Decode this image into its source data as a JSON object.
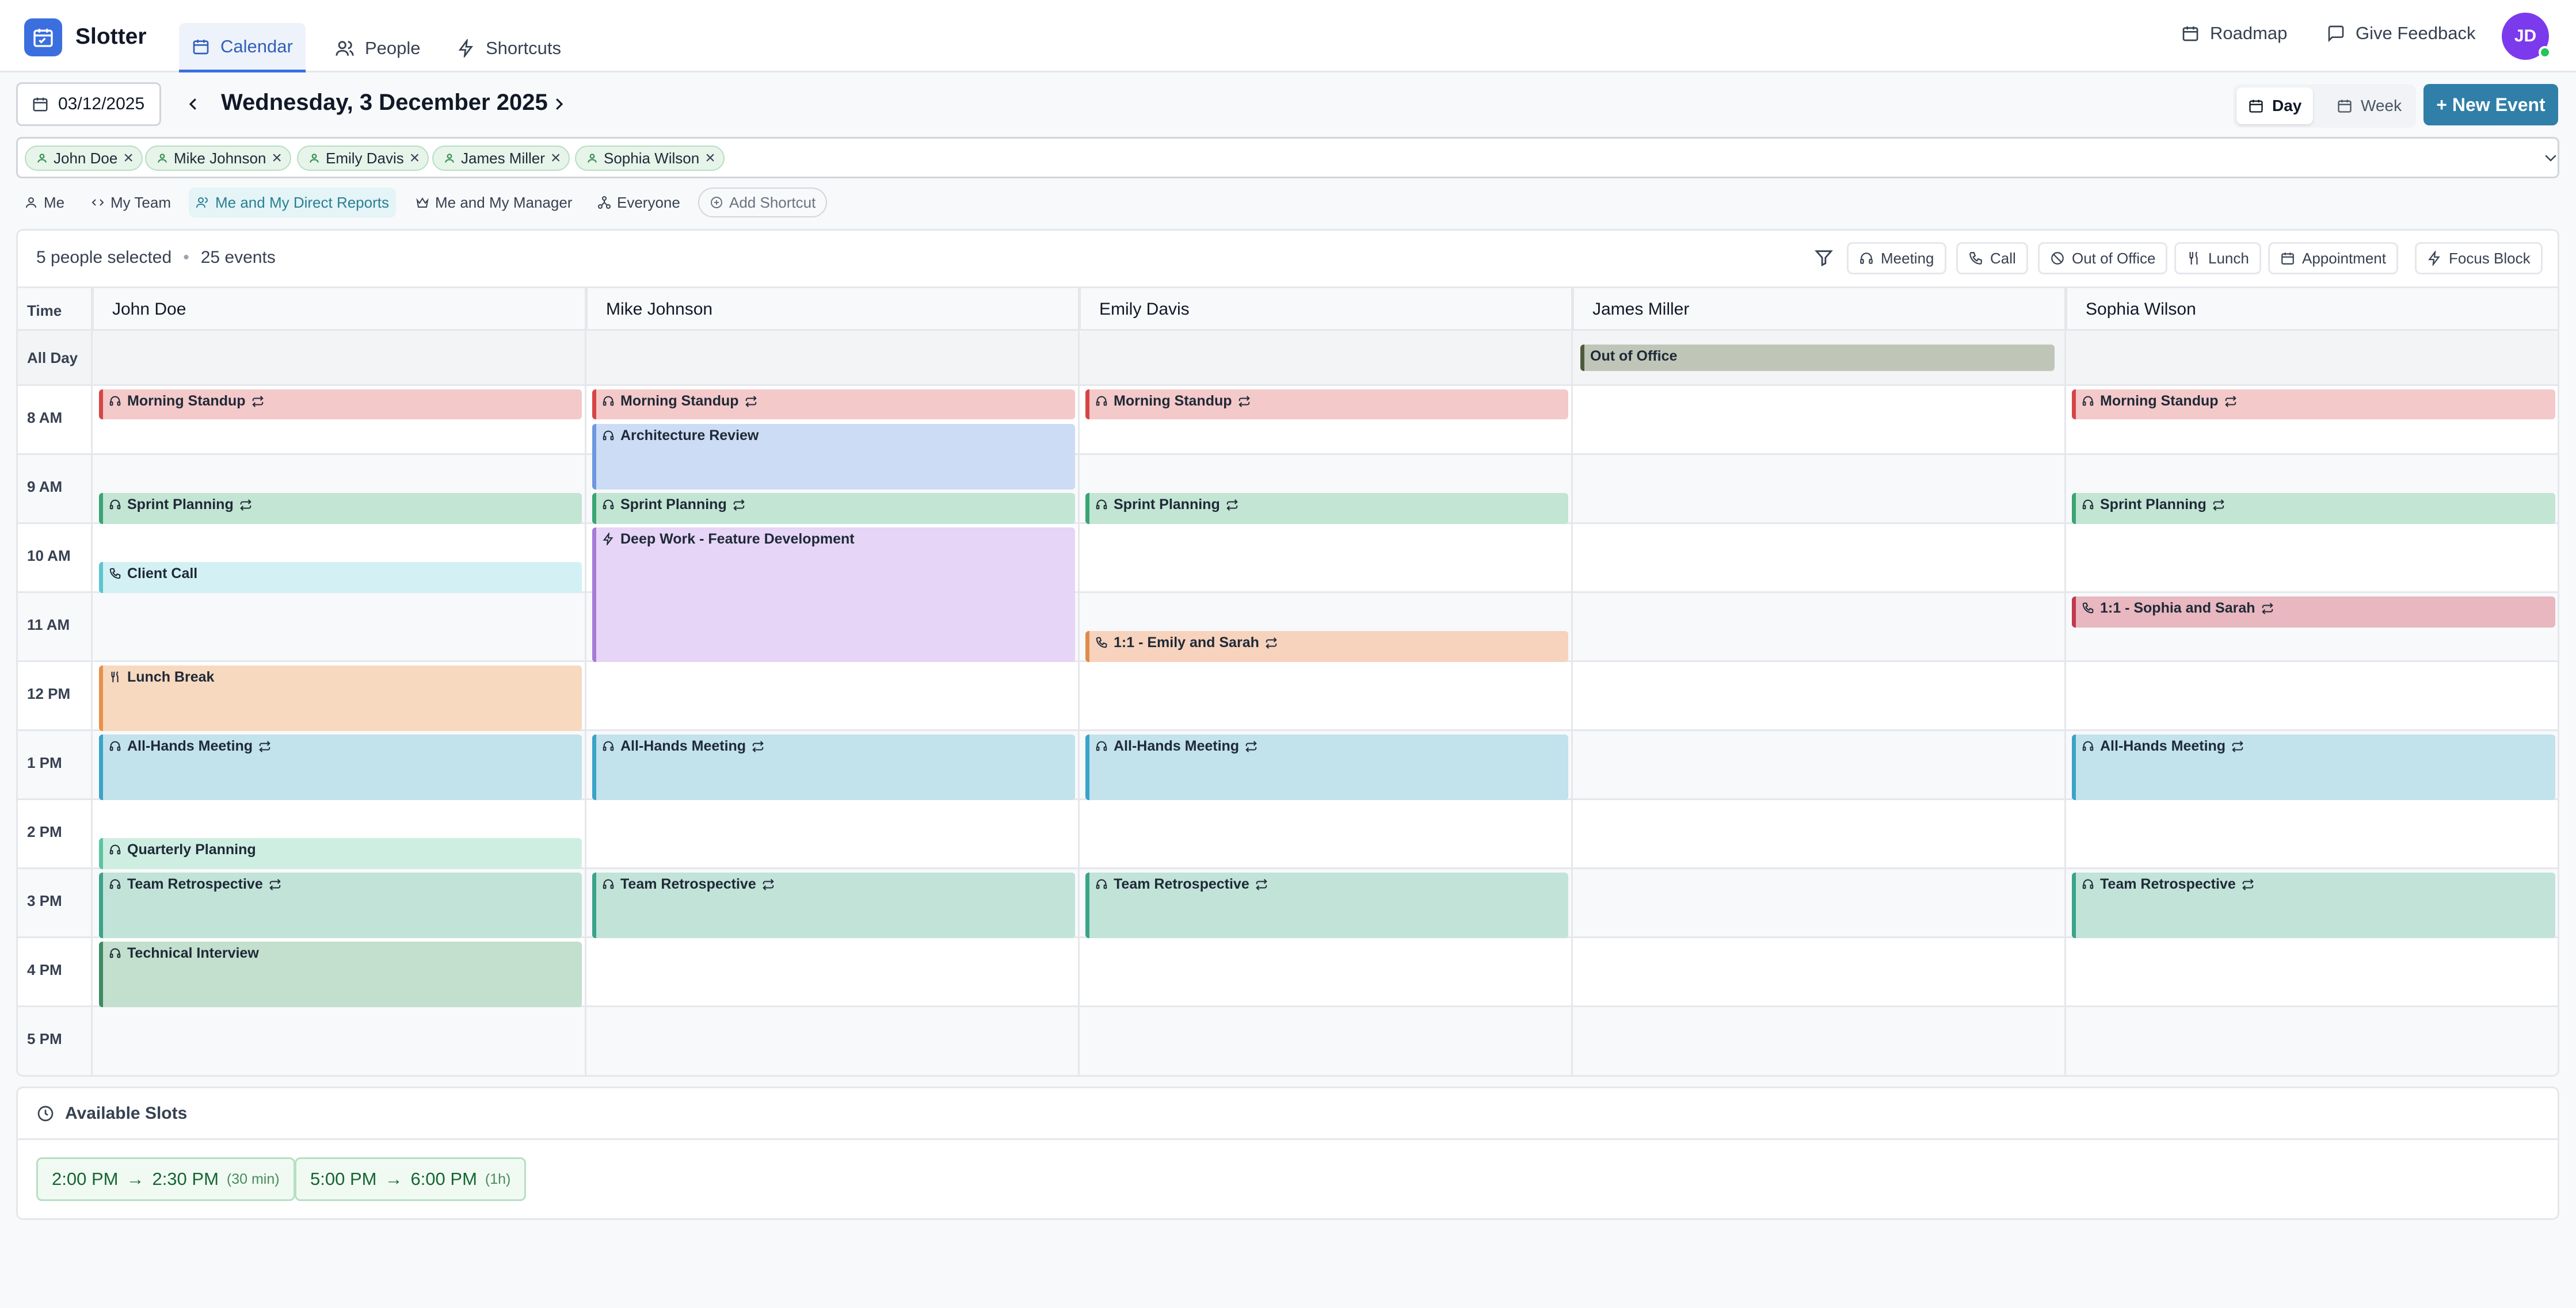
{
  "app": {
    "name": "Slotter",
    "user_initials": "JD"
  },
  "nav": {
    "tabs": [
      {
        "label": "Calendar"
      },
      {
        "label": "People"
      },
      {
        "label": "Shortcuts"
      }
    ],
    "roadmap": "Roadmap",
    "feedback": "Give Feedback"
  },
  "toolbar": {
    "date_value": "03/12/2025",
    "date_title": "Wednesday, 3 December 2025",
    "view_day": "Day",
    "view_week": "Week",
    "new_event": "+ New Event"
  },
  "people_chips": [
    "John Doe",
    "Mike Johnson",
    "Emily Davis",
    "James Miller",
    "Sophia Wilson"
  ],
  "shortcuts": [
    "Me",
    "My Team",
    "Me and My Direct Reports",
    "Me and My Manager",
    "Everyone",
    "Add Shortcut"
  ],
  "summary": {
    "people": "5 people selected",
    "events": "25 events"
  },
  "filters": [
    "Meeting",
    "Call",
    "Out of Office",
    "Lunch",
    "Appointment",
    "Focus Block"
  ],
  "grid": {
    "time_label": "Time",
    "all_day_label": "All Day",
    "hours": [
      "8 AM",
      "9 AM",
      "10 AM",
      "11 AM",
      "12 PM",
      "1 PM",
      "2 PM",
      "3 PM",
      "4 PM",
      "5 PM"
    ],
    "columns": [
      "John Doe",
      "Mike Johnson",
      "Emily Davis",
      "James Miller",
      "Sophia Wilson"
    ]
  },
  "all_day_events": [
    {
      "person": "James Miller",
      "title": "Out of Office",
      "color": "#a3ad98"
    }
  ],
  "events": {
    "john": [
      {
        "title": "Morning Standup",
        "icon": "headset-icon",
        "recurring": true
      },
      {
        "title": "Sprint Planning",
        "icon": "headset-icon",
        "recurring": true
      },
      {
        "title": "Client Call",
        "icon": "phone-icon",
        "recurring": false
      },
      {
        "title": "Lunch Break",
        "icon": "utensils-icon",
        "recurring": false
      },
      {
        "title": "All-Hands Meeting",
        "icon": "headset-icon",
        "recurring": true
      },
      {
        "title": "Quarterly Planning",
        "icon": "headset-icon",
        "recurring": false
      },
      {
        "title": "Team Retrospective",
        "icon": "headset-icon",
        "recurring": true
      },
      {
        "title": "Technical Interview",
        "icon": "headset-icon",
        "recurring": false
      }
    ],
    "mike": [
      {
        "title": "Morning Standup",
        "icon": "headset-icon",
        "recurring": true
      },
      {
        "title": "Architecture Review",
        "icon": "headset-icon",
        "recurring": false
      },
      {
        "title": "Sprint Planning",
        "icon": "headset-icon",
        "recurring": true
      },
      {
        "title": "Deep Work - Feature Development",
        "icon": "bolt-icon",
        "recurring": false
      },
      {
        "title": "All-Hands Meeting",
        "icon": "headset-icon",
        "recurring": true
      },
      {
        "title": "Team Retrospective",
        "icon": "headset-icon",
        "recurring": true
      }
    ],
    "emily": [
      {
        "title": "Morning Standup",
        "icon": "headset-icon",
        "recurring": true
      },
      {
        "title": "Sprint Planning",
        "icon": "headset-icon",
        "recurring": true
      },
      {
        "title": "1:1 - Emily and Sarah",
        "icon": "phone-icon",
        "recurring": true
      },
      {
        "title": "All-Hands Meeting",
        "icon": "headset-icon",
        "recurring": true
      },
      {
        "title": "Team Retrospective",
        "icon": "headset-icon",
        "recurring": true
      }
    ],
    "sophia": [
      {
        "title": "Morning Standup",
        "icon": "headset-icon",
        "recurring": true
      },
      {
        "title": "Sprint Planning",
        "icon": "headset-icon",
        "recurring": true
      },
      {
        "title": "1:1 - Sophia and Sarah",
        "icon": "phone-icon",
        "recurring": true
      },
      {
        "title": "All-Hands Meeting",
        "icon": "headset-icon",
        "recurring": true
      },
      {
        "title": "Team Retrospective",
        "icon": "headset-icon",
        "recurring": true
      }
    ]
  },
  "available_slots": {
    "title": "Available Slots",
    "slots": [
      {
        "start": "2:00 PM",
        "end": "2:30 PM",
        "duration": "(30 min)"
      },
      {
        "start": "5:00 PM",
        "end": "6:00 PM",
        "duration": "(1h)"
      }
    ]
  },
  "colors": {
    "accent": "#3b6fe0",
    "primary_button": "#2f7fa8",
    "avatar": "#7c3aed",
    "online": "#22c55e"
  }
}
